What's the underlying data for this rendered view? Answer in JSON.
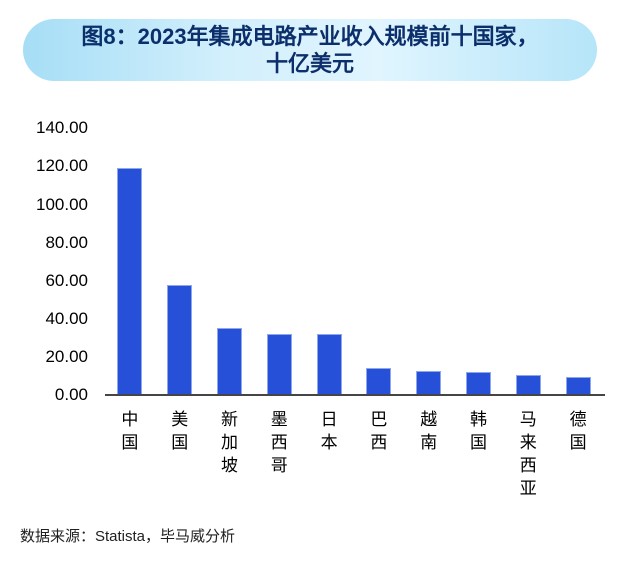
{
  "title": {
    "line1": "图8：2023年集成电路产业收入规模前十国家，",
    "line2": "十亿美元"
  },
  "chart_data": {
    "type": "bar",
    "title": "图8：2023年集成电路产业收入规模前十国家，十亿美元",
    "categories": [
      "中国",
      "美国",
      "新加坡",
      "墨西哥",
      "日本",
      "巴西",
      "越南",
      "韩国",
      "马来西亚",
      "德国"
    ],
    "values": [
      119.0,
      58.0,
      35.3,
      32.0,
      31.9,
      14.1,
      12.4,
      12.2,
      10.6,
      9.3
    ],
    "xlabel": "",
    "ylabel": "",
    "ylim": [
      0,
      140
    ],
    "ytick_step": 20,
    "yticks": [
      "140.00",
      "120.00",
      "100.00",
      "80.00",
      "60.00",
      "40.00",
      "20.00",
      "0.00"
    ],
    "grid": false,
    "legend_position": "none",
    "bar_color": "#2550d7"
  },
  "footer": {
    "source": "数据来源：Statista，毕马威分析"
  },
  "colors": {
    "bar": "#2550d7",
    "bar_border": "#8ea6ea",
    "title_text": "#0c2f6c",
    "pill_edge": "#a6def6",
    "pill_center": "#e0f5fe",
    "axis_line": "#454545",
    "tick_text": "#000000",
    "footer_text": "#1f1f1f"
  }
}
